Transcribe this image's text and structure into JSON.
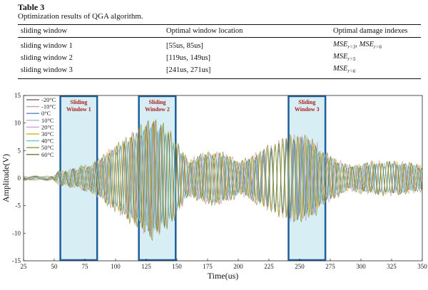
{
  "table": {
    "label": "Table 3",
    "caption": "Optimization results of QGA algorithm.",
    "headers": [
      "sliding window",
      "Optimal window location",
      "Optimal damage indexes"
    ],
    "rows": [
      {
        "window": "sliding window 1",
        "location": "[55us, 85us]",
        "index_sub": [
          "r=3",
          "r=6"
        ]
      },
      {
        "window": "sliding window 2",
        "location": "[119us, 149us]",
        "index_sub": [
          "r=5"
        ]
      },
      {
        "window": "sliding window 3",
        "location": "[241us, 271us]",
        "index_sub": [
          "r=6"
        ]
      }
    ],
    "index_symbol": "MSE"
  },
  "chart_data": {
    "type": "line",
    "xlabel": "Time(us)",
    "ylabel": "Amplitude(V)",
    "xlim": [
      25,
      350
    ],
    "ylim": [
      -15,
      15
    ],
    "x_ticks": [
      25,
      50,
      75,
      100,
      125,
      150,
      175,
      200,
      225,
      250,
      275,
      300,
      325,
      350
    ],
    "y_ticks": [
      -15,
      -10,
      -5,
      0,
      5,
      10,
      15
    ],
    "legend_placement": "top-left",
    "series": [
      {
        "name": "-20°C",
        "color": "#777777"
      },
      {
        "name": "-10°C",
        "color": "#c8a0a0"
      },
      {
        "name": "0°C",
        "color": "#5b7fd1"
      },
      {
        "name": "10°C",
        "color": "#a0b8e0"
      },
      {
        "name": "20°C",
        "color": "#d0a0d0"
      },
      {
        "name": "30°C",
        "color": "#e0b030"
      },
      {
        "name": "40°C",
        "color": "#60c8c8"
      },
      {
        "name": "50°C",
        "color": "#8a9a3a"
      },
      {
        "name": "60°C",
        "color": "#6a7a20"
      }
    ],
    "windows": [
      {
        "label_line1": "Sliding",
        "label_line2": "Window 1",
        "start": 55,
        "end": 85
      },
      {
        "label_line1": "Sliding",
        "label_line2": "Window 2",
        "start": 119,
        "end": 149
      },
      {
        "label_line1": "Sliding",
        "label_line2": "Window 3",
        "start": 241,
        "end": 271
      }
    ],
    "window_fill": "#d6eef4",
    "window_border": "#1f5e9a",
    "window_label_color": "#b02020"
  }
}
